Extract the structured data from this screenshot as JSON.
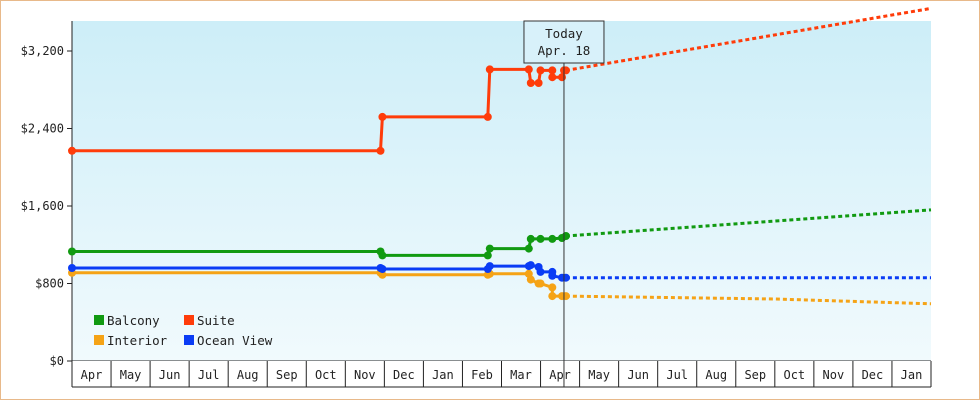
{
  "chart_data": {
    "type": "line",
    "title": "",
    "xlabel": "",
    "ylabel": "",
    "ylim": [
      0,
      3200
    ],
    "yticks": [
      0,
      800,
      1600,
      2400,
      3200
    ],
    "ytick_labels": [
      "$0",
      "$800",
      "$1,600",
      "$2,400",
      "$3,200"
    ],
    "xtick_labels": [
      "Apr",
      "May",
      "Jun",
      "Jul",
      "Aug",
      "Sep",
      "Oct",
      "Nov",
      "Dec",
      "Jan",
      "Feb",
      "Mar",
      "Apr",
      "May",
      "Jun",
      "Jul",
      "Aug",
      "Sep",
      "Oct",
      "Nov",
      "Dec",
      "Jan"
    ],
    "x_units": "months since start of first Apr shown",
    "today": {
      "line1": "Today",
      "line2": "Apr. 18",
      "x": 12.6
    },
    "legend": {
      "placement": "bottom-left"
    },
    "background": {
      "top": "#cdeef8",
      "bottom": "#f1fafd"
    },
    "series": [
      {
        "name": "Suite",
        "color": "#ff3c0a",
        "points": [
          [
            0.0,
            2170
          ],
          [
            7.9,
            2170
          ],
          [
            7.95,
            2520
          ],
          [
            10.65,
            2520
          ],
          [
            10.7,
            3010
          ],
          [
            11.7,
            3010
          ],
          [
            11.75,
            2870
          ],
          [
            11.95,
            2870
          ],
          [
            12.0,
            3000
          ],
          [
            12.3,
            3000
          ],
          [
            12.3,
            2930
          ],
          [
            12.55,
            2930
          ],
          [
            12.6,
            3000
          ],
          [
            12.65,
            3000
          ]
        ],
        "forecast": [
          [
            12.65,
            3000
          ],
          [
            22.0,
            3640
          ]
        ]
      },
      {
        "name": "Balcony",
        "color": "#119a11",
        "points": [
          [
            0.0,
            1130
          ],
          [
            7.9,
            1130
          ],
          [
            7.95,
            1090
          ],
          [
            10.65,
            1090
          ],
          [
            10.7,
            1160
          ],
          [
            11.7,
            1160
          ],
          [
            11.75,
            1260
          ],
          [
            12.0,
            1260
          ],
          [
            12.3,
            1260
          ],
          [
            12.55,
            1270
          ],
          [
            12.65,
            1290
          ]
        ],
        "forecast": [
          [
            12.65,
            1290
          ],
          [
            22.0,
            1560
          ]
        ]
      },
      {
        "name": "Interior",
        "color": "#f5a316",
        "points": [
          [
            0.0,
            910
          ],
          [
            7.9,
            910
          ],
          [
            7.95,
            890
          ],
          [
            10.65,
            890
          ],
          [
            10.7,
            900
          ],
          [
            11.7,
            900
          ],
          [
            11.75,
            840
          ],
          [
            11.95,
            800
          ],
          [
            12.0,
            800
          ],
          [
            12.3,
            760
          ],
          [
            12.3,
            670
          ],
          [
            12.55,
            670
          ],
          [
            12.65,
            670
          ]
        ],
        "forecast": [
          [
            12.65,
            670
          ],
          [
            18.0,
            640
          ],
          [
            22.0,
            590
          ]
        ]
      },
      {
        "name": "Ocean View",
        "color": "#0a3cf5",
        "points": [
          [
            0.0,
            960
          ],
          [
            7.9,
            960
          ],
          [
            7.95,
            950
          ],
          [
            10.65,
            950
          ],
          [
            10.7,
            980
          ],
          [
            11.7,
            980
          ],
          [
            11.75,
            990
          ],
          [
            11.95,
            970
          ],
          [
            12.0,
            920
          ],
          [
            12.3,
            920
          ],
          [
            12.3,
            880
          ],
          [
            12.55,
            860
          ],
          [
            12.65,
            860
          ]
        ],
        "forecast": [
          [
            12.65,
            860
          ],
          [
            22.0,
            860
          ]
        ]
      }
    ]
  }
}
